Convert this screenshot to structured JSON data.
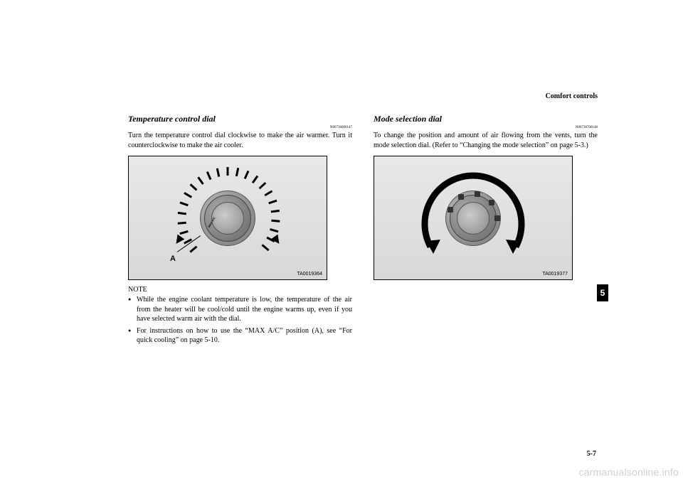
{
  "header": {
    "section": "Comfort controls"
  },
  "left": {
    "title": "Temperature control dial",
    "code": "N00736600147",
    "body": "Turn the temperature control dial clockwise to make the air warmer. Turn it counterclockwise to make the air cooler.",
    "figure": {
      "label": "TA0019364",
      "callout": "A",
      "max_ac": "MAX A/C",
      "tick_count": 23,
      "tick_start_deg": -130,
      "tick_end_deg": 130,
      "dial_colors": {
        "outer": "#888888",
        "inner": "#aaaaaa"
      }
    },
    "note_label": "NOTE",
    "notes": [
      "While the engine coolant temperature is low, the temperature of the air from the heater will be cool/cold until the engine warms up, even if you have selected warm air with the dial.",
      "For instructions on how to use the “MAX A/C” position (A), see “For quick cooling” on page 5-10."
    ]
  },
  "right": {
    "title": "Mode selection dial",
    "code": "N00736700148",
    "body": "To change the position and amount of air flowing from the vents, turn the mode selection dial. (Refer to “Changing the mode selection” on page 5-3.)",
    "figure": {
      "label": "TA0019377",
      "arc_color": "#000000",
      "dial_colors": {
        "outer": "#888888",
        "inner": "#aaaaaa"
      },
      "mode_positions_deg": [
        -70,
        -30,
        10,
        50,
        90
      ]
    }
  },
  "footer": {
    "page": "5-7",
    "tab": "5",
    "watermark": "carmanualsonline.info"
  }
}
